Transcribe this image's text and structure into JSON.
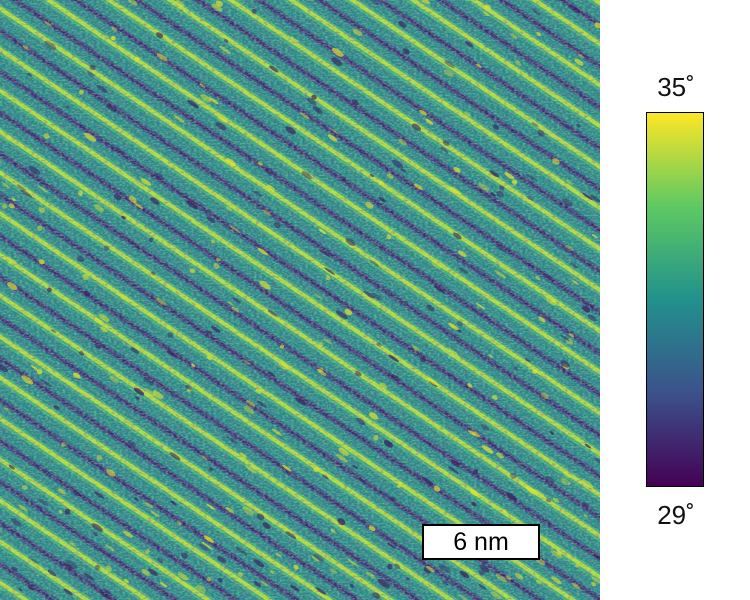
{
  "image": {
    "kind": "AFM phase map",
    "colormap": [
      "#440154",
      "#3b528b",
      "#21918c",
      "#5ec962",
      "#fde725"
    ],
    "base_color": "#2a8a86"
  },
  "scale_bar": {
    "label": "6 nm"
  },
  "colorbar": {
    "max_label": "35˚",
    "min_label": "29˚"
  }
}
